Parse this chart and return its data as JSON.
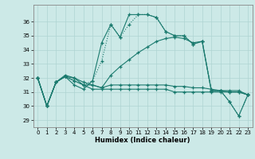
{
  "xlabel": "Humidex (Indice chaleur)",
  "bg_color": "#cce9e7",
  "grid_color": "#afd4d2",
  "line_color": "#1a7a6e",
  "xlim": [
    -0.5,
    23.5
  ],
  "ylim": [
    28.5,
    37.2
  ],
  "yticks": [
    29,
    30,
    31,
    32,
    33,
    34,
    35,
    36
  ],
  "xticks": [
    0,
    1,
    2,
    3,
    4,
    5,
    6,
    7,
    8,
    9,
    10,
    11,
    12,
    13,
    14,
    15,
    16,
    17,
    18,
    19,
    20,
    21,
    22,
    23
  ],
  "series": [
    {
      "x": [
        0,
        1,
        2,
        3,
        4,
        5,
        6,
        7,
        8,
        9,
        10,
        11,
        12,
        13,
        14,
        15,
        16,
        17,
        18,
        19,
        20,
        21,
        22,
        23
      ],
      "y": [
        32.0,
        30.0,
        31.7,
        32.1,
        31.8,
        31.5,
        31.8,
        33.2,
        35.8,
        34.9,
        35.8,
        36.5,
        36.5,
        36.3,
        35.3,
        35.0,
        35.0,
        34.4,
        34.6,
        31.1,
        31.1,
        30.3,
        29.3,
        30.8
      ],
      "style": "dotted"
    },
    {
      "x": [
        0,
        1,
        2,
        3,
        4,
        5,
        6,
        7,
        8,
        9,
        10,
        11,
        12,
        13,
        14,
        15,
        16,
        17,
        18,
        19,
        20,
        21,
        22,
        23
      ],
      "y": [
        32.0,
        30.0,
        31.7,
        32.1,
        31.8,
        31.5,
        31.5,
        31.3,
        31.5,
        31.5,
        31.5,
        31.5,
        31.5,
        31.5,
        31.5,
        31.4,
        31.4,
        31.3,
        31.3,
        31.2,
        31.1,
        31.1,
        31.1,
        30.8
      ],
      "style": "solid"
    },
    {
      "x": [
        0,
        1,
        2,
        3,
        4,
        5,
        6,
        7,
        8,
        9,
        10,
        11,
        12,
        13,
        14,
        15,
        16,
        17,
        18,
        19,
        20,
        21,
        22,
        23
      ],
      "y": [
        32.0,
        30.0,
        31.7,
        32.1,
        32.0,
        31.7,
        31.5,
        31.3,
        32.2,
        32.8,
        33.3,
        33.8,
        34.2,
        34.6,
        34.8,
        34.9,
        34.8,
        34.5,
        34.6,
        31.1,
        31.1,
        31.0,
        31.0,
        30.8
      ],
      "style": "solid"
    },
    {
      "x": [
        0,
        1,
        2,
        3,
        4,
        5,
        6,
        7,
        8,
        9,
        10,
        11,
        12,
        13,
        14,
        15,
        16,
        17,
        18,
        19,
        20,
        21,
        22,
        23
      ],
      "y": [
        32.0,
        30.0,
        31.7,
        32.1,
        31.5,
        31.2,
        31.8,
        34.5,
        35.8,
        34.9,
        36.5,
        36.5,
        36.5,
        36.3,
        35.3,
        35.0,
        35.0,
        34.4,
        34.6,
        31.1,
        31.1,
        30.3,
        29.3,
        30.8
      ],
      "style": "solid"
    },
    {
      "x": [
        0,
        1,
        2,
        3,
        4,
        5,
        6,
        7,
        8,
        9,
        10,
        11,
        12,
        13,
        14,
        15,
        16,
        17,
        18,
        19,
        20,
        21,
        22,
        23
      ],
      "y": [
        32.0,
        30.0,
        31.7,
        32.2,
        32.0,
        31.5,
        31.2,
        31.2,
        31.2,
        31.2,
        31.2,
        31.2,
        31.2,
        31.2,
        31.2,
        31.0,
        31.0,
        31.0,
        31.0,
        31.0,
        31.0,
        31.0,
        31.0,
        30.8
      ],
      "style": "solid"
    }
  ]
}
